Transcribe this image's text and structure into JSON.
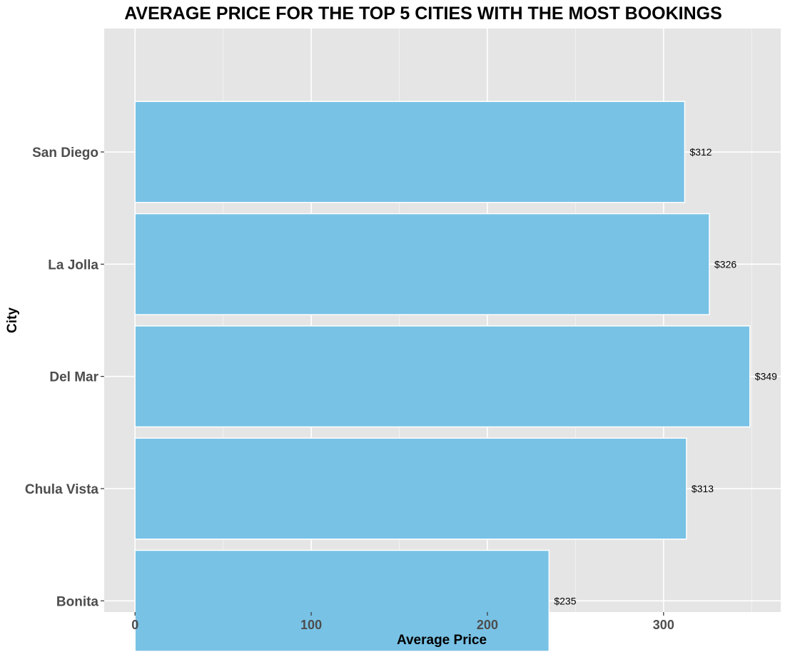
{
  "chart_data": {
    "type": "bar",
    "orientation": "horizontal",
    "title": "AVERAGE PRICE FOR THE TOP 5 CITIES WITH THE MOST BOOKINGS",
    "xlabel": "Average Price",
    "ylabel": "City",
    "categories": [
      "San Diego",
      "La Jolla",
      "Del Mar",
      "Chula Vista",
      "Bonita"
    ],
    "values": [
      312,
      326,
      349,
      313,
      235
    ],
    "data_labels": [
      "$312",
      "$326",
      "$349",
      "$313",
      "$235"
    ],
    "x_ticks": [
      0,
      100,
      200,
      300
    ],
    "xlim": [
      -17.5,
      366.5
    ],
    "grid": true,
    "colors": {
      "bar_fill": "#78c2e5",
      "bar_stroke": "#ffffff",
      "panel_bg": "#e5e5e5",
      "grid_major": "#ffffff",
      "grid_minor": "#f2f2f2"
    }
  }
}
